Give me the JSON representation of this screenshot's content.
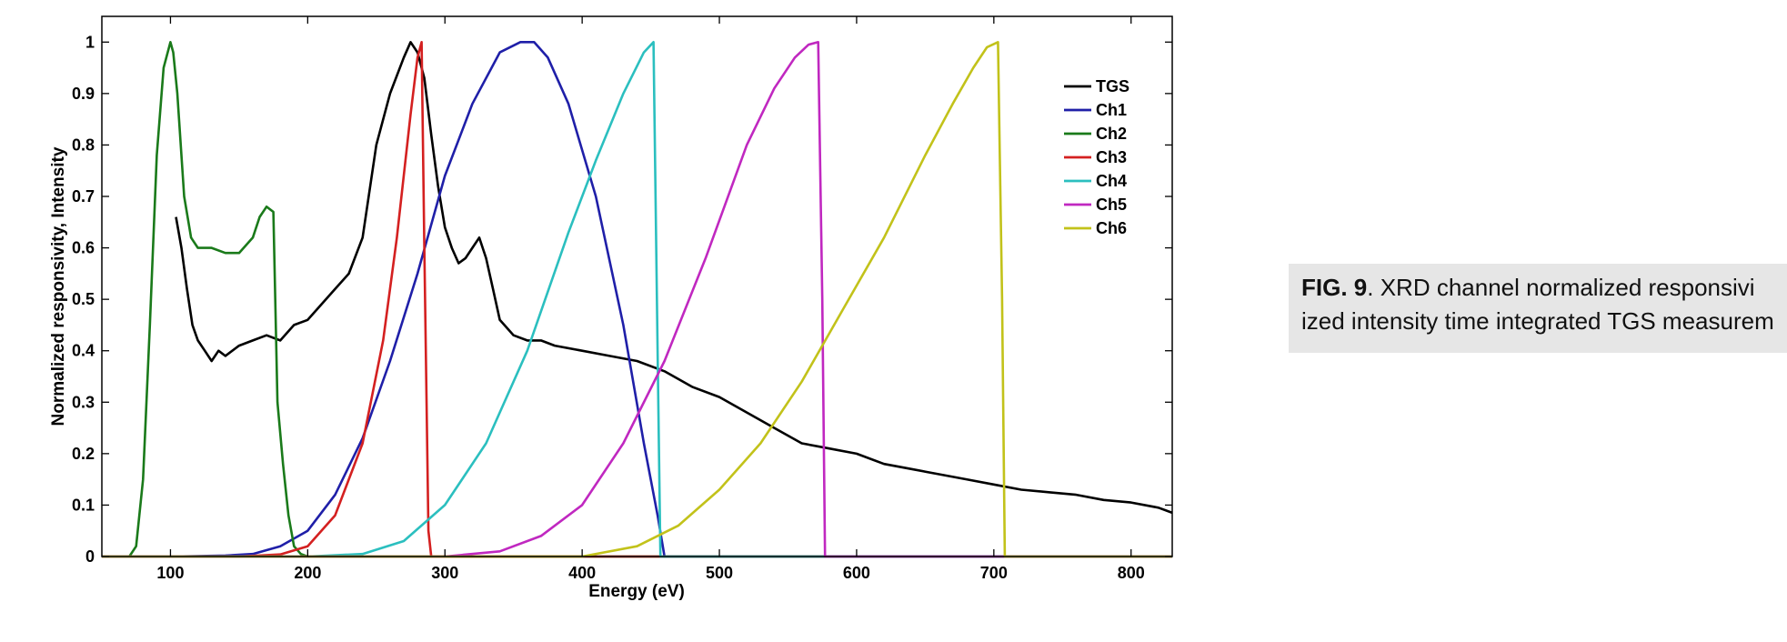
{
  "caption": {
    "label": "FIG. 9",
    "line1": ". XRD channel normalized responsivi",
    "line2": "ized intensity time integrated TGS measurem"
  },
  "chart_data": {
    "type": "line",
    "xlabel": "Energy (eV)",
    "ylabel": "Normalized responsivity, Intensity",
    "xlim": [
      50,
      830
    ],
    "ylim": [
      0,
      1.05
    ],
    "xticks": [
      100,
      200,
      300,
      400,
      500,
      600,
      700,
      800
    ],
    "yticks": [
      0,
      0.1,
      0.2,
      0.3,
      0.4,
      0.5,
      0.6,
      0.7,
      0.8,
      0.9,
      1
    ],
    "ytick_labels": [
      "0",
      "0.1",
      "0.2",
      "0.3",
      "0.4",
      "0.5",
      "0.6",
      "0.7",
      "0.8",
      "0.9",
      "1"
    ],
    "grid": false,
    "legend_position": "top-right",
    "series": [
      {
        "name": "TGS",
        "color": "#000000",
        "x": [
          104,
          108,
          112,
          116,
          120,
          125,
          130,
          135,
          140,
          150,
          160,
          170,
          180,
          190,
          200,
          210,
          220,
          230,
          240,
          250,
          260,
          270,
          275,
          280,
          285,
          290,
          295,
          300,
          305,
          310,
          315,
          320,
          325,
          330,
          335,
          340,
          350,
          360,
          370,
          380,
          400,
          420,
          440,
          460,
          480,
          500,
          520,
          540,
          560,
          580,
          600,
          620,
          640,
          660,
          680,
          700,
          720,
          740,
          760,
          780,
          800,
          820,
          830
        ],
        "y": [
          0.66,
          0.6,
          0.52,
          0.45,
          0.42,
          0.4,
          0.38,
          0.4,
          0.39,
          0.41,
          0.42,
          0.43,
          0.42,
          0.45,
          0.46,
          0.49,
          0.52,
          0.55,
          0.62,
          0.8,
          0.9,
          0.97,
          1.0,
          0.98,
          0.93,
          0.82,
          0.72,
          0.64,
          0.6,
          0.57,
          0.58,
          0.6,
          0.62,
          0.58,
          0.52,
          0.46,
          0.43,
          0.42,
          0.42,
          0.41,
          0.4,
          0.39,
          0.38,
          0.36,
          0.33,
          0.31,
          0.28,
          0.25,
          0.22,
          0.21,
          0.2,
          0.18,
          0.17,
          0.16,
          0.15,
          0.14,
          0.13,
          0.125,
          0.12,
          0.11,
          0.105,
          0.095,
          0.085
        ]
      },
      {
        "name": "Ch1",
        "color": "#1f1fa8",
        "x": [
          50,
          100,
          140,
          160,
          180,
          200,
          220,
          240,
          260,
          280,
          300,
          320,
          340,
          355,
          365,
          375,
          390,
          410,
          430,
          445,
          455,
          460,
          830
        ],
        "y": [
          0,
          0,
          0.002,
          0.005,
          0.02,
          0.05,
          0.12,
          0.23,
          0.38,
          0.55,
          0.74,
          0.88,
          0.98,
          1.0,
          1.0,
          0.97,
          0.88,
          0.7,
          0.45,
          0.22,
          0.08,
          0,
          0
        ]
      },
      {
        "name": "Ch2",
        "color": "#1a7a1a",
        "x": [
          50,
          70,
          75,
          80,
          85,
          90,
          95,
          100,
          102,
          105,
          110,
          115,
          120,
          130,
          140,
          150,
          160,
          165,
          170,
          175,
          178,
          182,
          186,
          190,
          195,
          200,
          830
        ],
        "y": [
          0,
          0,
          0.02,
          0.15,
          0.45,
          0.78,
          0.95,
          1.0,
          0.98,
          0.9,
          0.7,
          0.62,
          0.6,
          0.6,
          0.59,
          0.59,
          0.62,
          0.66,
          0.68,
          0.67,
          0.3,
          0.18,
          0.08,
          0.02,
          0.005,
          0,
          0
        ]
      },
      {
        "name": "Ch3",
        "color": "#d42020",
        "x": [
          50,
          150,
          180,
          200,
          220,
          240,
          255,
          265,
          275,
          280,
          283,
          285,
          288,
          290,
          830
        ],
        "y": [
          0,
          0,
          0.004,
          0.02,
          0.08,
          0.22,
          0.42,
          0.62,
          0.86,
          0.97,
          1.0,
          0.6,
          0.05,
          0,
          0
        ]
      },
      {
        "name": "Ch4",
        "color": "#2bbfbf",
        "x": [
          50,
          200,
          240,
          270,
          300,
          330,
          360,
          390,
          410,
          430,
          445,
          452,
          455,
          457,
          830
        ],
        "y": [
          0,
          0,
          0.005,
          0.03,
          0.1,
          0.22,
          0.4,
          0.63,
          0.77,
          0.9,
          0.98,
          1.0,
          0.4,
          0,
          0
        ]
      },
      {
        "name": "Ch5",
        "color": "#c028c0",
        "x": [
          50,
          300,
          340,
          370,
          400,
          430,
          460,
          490,
          520,
          540,
          555,
          565,
          572,
          575,
          577,
          830
        ],
        "y": [
          0,
          0,
          0.01,
          0.04,
          0.1,
          0.22,
          0.38,
          0.58,
          0.8,
          0.91,
          0.97,
          0.995,
          1.0,
          0.5,
          0,
          0
        ]
      },
      {
        "name": "Ch6",
        "color": "#c2c21a",
        "x": [
          50,
          400,
          440,
          470,
          500,
          530,
          560,
          590,
          620,
          650,
          670,
          685,
          695,
          703,
          706,
          708,
          830
        ],
        "y": [
          0,
          0,
          0.02,
          0.06,
          0.13,
          0.22,
          0.34,
          0.48,
          0.62,
          0.78,
          0.88,
          0.95,
          0.99,
          1.0,
          0.5,
          0,
          0
        ]
      }
    ]
  }
}
